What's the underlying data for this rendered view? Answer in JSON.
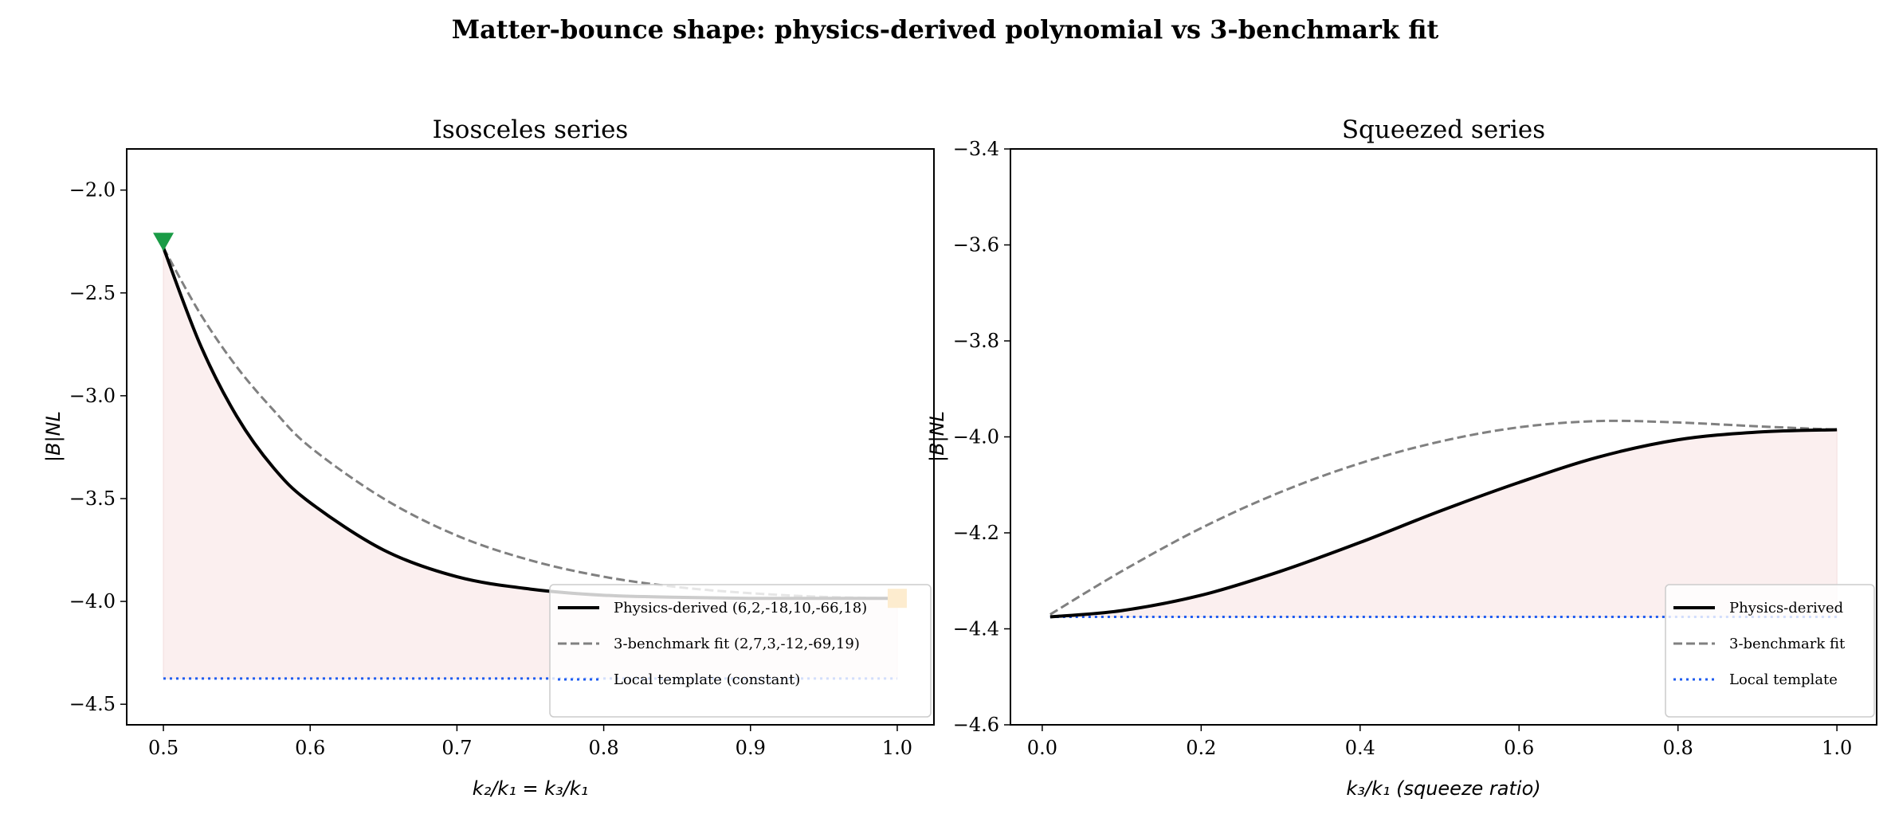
{
  "figure_title": "Matter-bounce shape: physics-derived polynomial vs 3-benchmark fit",
  "colors": {
    "physics": "#000000",
    "fit": "#808080",
    "local": "#1f5cf0",
    "fill": "#fbefef",
    "triangle_marker": "#1a9b46",
    "square_marker": "#f5a012"
  },
  "chart_data": [
    {
      "type": "line",
      "title": "Isosceles series",
      "xlabel": "k₂/k₁ = k₃/k₁",
      "ylabel": "|B|NL",
      "xlim": [
        0.475,
        1.025
      ],
      "ylim": [
        -4.6,
        -1.8
      ],
      "xticks": [
        "0.5",
        "0.6",
        "0.7",
        "0.8",
        "0.9",
        "1.0"
      ],
      "xtick_values": [
        0.5,
        0.6,
        0.7,
        0.8,
        0.9,
        1.0
      ],
      "yticks": [
        "−2.0",
        "−2.5",
        "−3.0",
        "−3.5",
        "−4.0",
        "−4.5"
      ],
      "ytick_values": [
        -2.0,
        -2.5,
        -3.0,
        -3.5,
        -4.0,
        -4.5
      ],
      "grid": false,
      "legend_placement": "lower-right",
      "x": [
        0.5,
        0.525,
        0.55,
        0.575,
        0.6,
        0.65,
        0.7,
        0.75,
        0.8,
        0.85,
        0.9,
        0.95,
        1.0
      ],
      "series": [
        {
          "name": "Physics-derived (6,2,-18,10,-66,18)",
          "style": "solid",
          "values": [
            -2.28,
            -2.75,
            -3.1,
            -3.35,
            -3.52,
            -3.75,
            -3.88,
            -3.94,
            -3.97,
            -3.98,
            -3.985,
            -3.985,
            -3.985
          ]
        },
        {
          "name": "3-benchmark fit (2,7,3,-12,-69,19)",
          "style": "dashed",
          "values": [
            -2.28,
            -2.6,
            -2.86,
            -3.07,
            -3.25,
            -3.5,
            -3.68,
            -3.8,
            -3.88,
            -3.93,
            -3.96,
            -3.978,
            -3.985
          ]
        },
        {
          "name": "Local template (constant)",
          "style": "dotted",
          "values": [
            -4.375,
            -4.375,
            -4.375,
            -4.375,
            -4.375,
            -4.375,
            -4.375,
            -4.375,
            -4.375,
            -4.375,
            -4.375,
            -4.375,
            -4.375
          ]
        }
      ],
      "markers": [
        {
          "shape": "triangle-down",
          "x": 0.5,
          "y": -2.25
        },
        {
          "shape": "square",
          "x": 1.0,
          "y": -3.985
        }
      ],
      "fill_between": [
        "Local template (constant)",
        "Physics-derived (6,2,-18,10,-66,18)"
      ]
    },
    {
      "type": "line",
      "title": "Squeezed series",
      "xlabel": "k₃/k₁  (squeeze ratio)",
      "ylabel": "|B|NL",
      "xlim": [
        -0.04,
        1.05
      ],
      "ylim": [
        -4.6,
        -3.4
      ],
      "xticks": [
        "0.0",
        "0.2",
        "0.4",
        "0.6",
        "0.8",
        "1.0"
      ],
      "xtick_values": [
        0.0,
        0.2,
        0.4,
        0.6,
        0.8,
        1.0
      ],
      "yticks": [
        "−3.4",
        "−3.6",
        "−3.8",
        "−4.0",
        "−4.2",
        "−4.4",
        "−4.6"
      ],
      "ytick_values": [
        -3.4,
        -3.6,
        -3.8,
        -4.0,
        -4.2,
        -4.4,
        -4.6
      ],
      "grid": false,
      "legend_placement": "lower-right",
      "x": [
        0.01,
        0.1,
        0.2,
        0.3,
        0.4,
        0.5,
        0.6,
        0.7,
        0.8,
        0.9,
        1.0
      ],
      "series": [
        {
          "name": "Physics-derived",
          "style": "solid",
          "values": [
            -4.375,
            -4.362,
            -4.33,
            -4.28,
            -4.22,
            -4.155,
            -4.095,
            -4.042,
            -4.006,
            -3.99,
            -3.985
          ]
        },
        {
          "name": "3-benchmark fit",
          "style": "dashed",
          "values": [
            -4.37,
            -4.28,
            -4.19,
            -4.115,
            -4.055,
            -4.01,
            -3.98,
            -3.967,
            -3.97,
            -3.978,
            -3.985
          ]
        },
        {
          "name": "Local template",
          "style": "dotted",
          "values": [
            -4.375,
            -4.375,
            -4.375,
            -4.375,
            -4.375,
            -4.375,
            -4.375,
            -4.375,
            -4.375,
            -4.375,
            -4.375
          ]
        }
      ],
      "fill_between": [
        "Local template",
        "Physics-derived"
      ]
    }
  ]
}
